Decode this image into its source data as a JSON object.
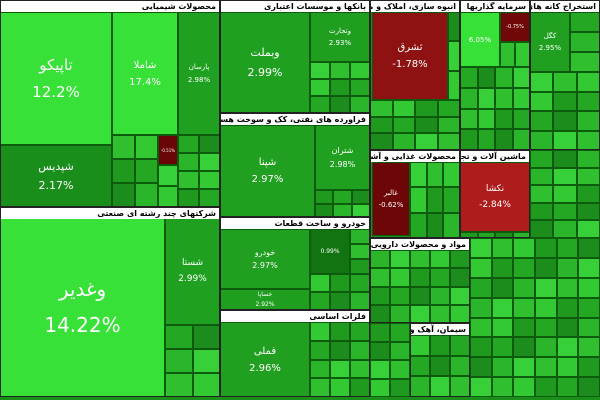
{
  "chart_data": {
    "type": "treemap",
    "groups": [
      {
        "name": "محصولات شیمیایی",
        "labels": [
          "تاپیکو",
          "شاملا",
          "پارسان",
          "شپدیس",
          null
        ],
        "values": [
          12.2,
          17.4,
          2.98,
          2.17,
          -0.51
        ],
        "value_labels": [
          "12.2%",
          "17.4%",
          "2.98%",
          "2.17%",
          "-0.51%"
        ]
      },
      {
        "name": "شرکتهای چند رشته ای صنعتی",
        "labels": [
          "وغدیر",
          "شستا"
        ],
        "values": [
          14.22,
          2.99
        ],
        "value_labels": [
          "14.22%",
          "2.99%"
        ]
      },
      {
        "name": "بانکها و موسسات اعتباری",
        "labels": [
          "وبملت",
          "وتجارت"
        ],
        "values": [
          2.99,
          2.93
        ],
        "value_labels": [
          "2.99%",
          "2.93%"
        ]
      },
      {
        "name": "فراورده های نفتی، کک و سوخت هسته ای",
        "labels": [
          "شپنا",
          "شتران"
        ],
        "values": [
          2.97,
          2.98
        ],
        "value_labels": [
          "2.97%",
          "2.98%"
        ]
      },
      {
        "name": "خودرو و ساخت قطعات",
        "labels": [
          "خودرو",
          null,
          "خساپا"
        ],
        "values": [
          2.97,
          0.99,
          2.92
        ],
        "value_labels": [
          "2.97%",
          "0.99%",
          "2.92%"
        ]
      },
      {
        "name": "فلزات اساسی",
        "labels": [
          "فملی"
        ],
        "values": [
          2.96
        ],
        "value_labels": [
          "2.96%"
        ]
      },
      {
        "name": "انبوه سازی، املاک و مستغلات",
        "labels": [
          "ثشرق"
        ],
        "values": [
          -1.78
        ],
        "value_labels": [
          "-1.78%"
        ]
      },
      {
        "name": "سرمایه گذاریها",
        "labels": [
          null,
          null
        ],
        "values": [
          6.05,
          -0.75
        ],
        "value_labels": [
          "6.05%",
          "-0.75%"
        ]
      },
      {
        "name": "استخراج کانه های فلزی",
        "labels": [
          "کگل"
        ],
        "values": [
          2.95
        ],
        "value_labels": [
          "2.95%"
        ]
      },
      {
        "name": "محصولات غذایی و آشامیدنی به جز قند و شکر",
        "labels": [
          "غالبر"
        ],
        "values": [
          -0.62
        ],
        "value_labels": [
          "-0.62%"
        ]
      },
      {
        "name": "ماشین آلات و تجهیزات",
        "labels": [
          "نکشا"
        ],
        "values": [
          -2.84
        ],
        "value_labels": [
          "-2.84%"
        ]
      },
      {
        "name": "مواد و محصولات دارویی",
        "labels": [],
        "values": [],
        "value_labels": []
      },
      {
        "name": "سیمان، آهک و گچ",
        "labels": [],
        "values": [],
        "value_labels": []
      }
    ]
  }
}
